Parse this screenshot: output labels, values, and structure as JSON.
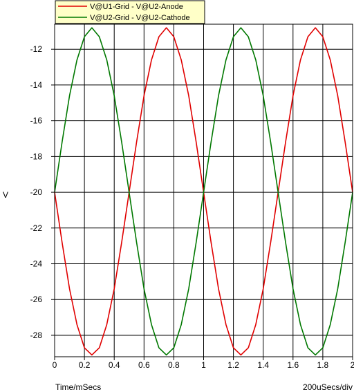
{
  "chart_data": {
    "type": "line",
    "title": "",
    "xlabel": "Time/mSecs",
    "ylabel": "V",
    "x_scale_note": "200uSecs/div",
    "xlim": [
      0,
      2
    ],
    "ylim": [
      -29.2,
      -10.6
    ],
    "x_ticks": [
      0,
      0.2,
      0.4,
      0.6,
      0.8,
      1,
      1.2,
      1.4,
      1.6,
      1.8,
      2
    ],
    "x_tick_labels": [
      "0",
      "0.2",
      "0.4",
      "0.6",
      "0.8",
      "1",
      "1.2",
      "1.4",
      "1.6",
      "1.8",
      "2"
    ],
    "y_ticks": [
      -12,
      -14,
      -16,
      -18,
      -20,
      -22,
      -24,
      -26,
      -28
    ],
    "y_tick_labels": [
      "-12",
      "-14",
      "-16",
      "-18",
      "-20",
      "-22",
      "-24",
      "-26",
      "-28"
    ],
    "grid": true,
    "legend_position": "top-left",
    "series": [
      {
        "name": "V@U1-Grid - V@U2-Anode",
        "color": "#e00000",
        "x": [
          0,
          0.05,
          0.1,
          0.15,
          0.2,
          0.25,
          0.3,
          0.35,
          0.4,
          0.45,
          0.5,
          0.55,
          0.6,
          0.65,
          0.7,
          0.75,
          0.8,
          0.85,
          0.9,
          0.95,
          1,
          1.05,
          1.1,
          1.15,
          1.2,
          1.25,
          1.3,
          1.35,
          1.4,
          1.45,
          1.5,
          1.55,
          1.6,
          1.65,
          1.7,
          1.75,
          1.8,
          1.85,
          1.9,
          1.95,
          2
        ],
        "values": [
          -20,
          -22.8,
          -25.4,
          -27.4,
          -28.7,
          -29.1,
          -28.7,
          -27.4,
          -25.4,
          -22.8,
          -20,
          -17.2,
          -14.6,
          -12.6,
          -11.3,
          -10.8,
          -11.3,
          -12.6,
          -14.6,
          -17.2,
          -20,
          -22.8,
          -25.4,
          -27.4,
          -28.7,
          -29.1,
          -28.7,
          -27.4,
          -25.4,
          -22.8,
          -20,
          -17.2,
          -14.6,
          -12.6,
          -11.3,
          -10.8,
          -11.3,
          -12.6,
          -14.6,
          -17.2,
          -20
        ]
      },
      {
        "name": "V@U2-Grid - V@U2-Cathode",
        "color": "#007800",
        "x": [
          0,
          0.05,
          0.1,
          0.15,
          0.2,
          0.25,
          0.3,
          0.35,
          0.4,
          0.45,
          0.5,
          0.55,
          0.6,
          0.65,
          0.7,
          0.75,
          0.8,
          0.85,
          0.9,
          0.95,
          1,
          1.05,
          1.1,
          1.15,
          1.2,
          1.25,
          1.3,
          1.35,
          1.4,
          1.45,
          1.5,
          1.55,
          1.6,
          1.65,
          1.7,
          1.75,
          1.8,
          1.85,
          1.9,
          1.95,
          2
        ],
        "values": [
          -20,
          -17.2,
          -14.6,
          -12.6,
          -11.3,
          -10.8,
          -11.3,
          -12.6,
          -14.6,
          -17.2,
          -20,
          -22.8,
          -25.4,
          -27.4,
          -28.7,
          -29.1,
          -28.7,
          -27.4,
          -25.4,
          -22.8,
          -20,
          -17.2,
          -14.6,
          -12.6,
          -11.3,
          -10.8,
          -11.3,
          -12.6,
          -14.6,
          -17.2,
          -20,
          -22.8,
          -25.4,
          -27.4,
          -28.7,
          -29.1,
          -28.7,
          -27.4,
          -25.4,
          -22.8,
          -20
        ]
      }
    ]
  }
}
